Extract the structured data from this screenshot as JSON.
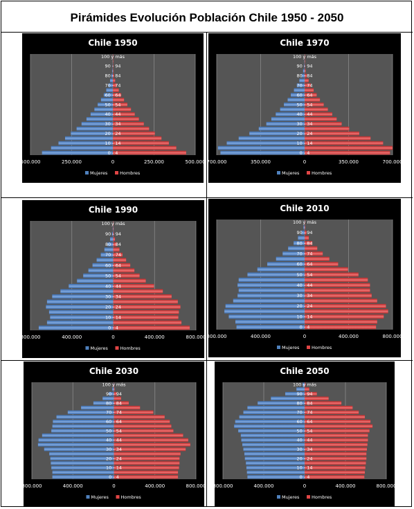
{
  "page": {
    "title": "Pirámides Evolución Población Chile 1950 - 2050"
  },
  "colors": {
    "mujeres": "#4f81bd",
    "hombres": "#e04545",
    "plot_bg": "#555555",
    "panel_bg": "#000000"
  },
  "chart_data": [
    {
      "type": "bar",
      "orientation": "horizontal",
      "title": "Chile 1950",
      "categories": [
        "0 - 4",
        "5 - 9",
        "10 - 14",
        "15 - 19",
        "20 - 24",
        "25 - 29",
        "30 - 34",
        "35 - 39",
        "40 - 44",
        "45 - 49",
        "50 - 54",
        "55 - 59",
        "60 - 64",
        "65 - 69",
        "70 - 74",
        "75 - 79",
        "80 - 84",
        "85 - 89",
        "90 - 94",
        "95 - 99",
        "100 y más"
      ],
      "category_labels": [
        "0 - 4",
        "",
        "10 - 14",
        "",
        "20 - 24",
        "",
        "30 - 34",
        "",
        "40 - 44",
        "",
        "50 - 54",
        "",
        "60 - 64",
        "",
        "70 - 74",
        "",
        "80 - 84",
        "",
        "90 - 94",
        "",
        "100 y más"
      ],
      "series": [
        {
          "name": "Mujeres",
          "values": [
            -430000,
            -375000,
            -330000,
            -290000,
            -255000,
            -220000,
            -190000,
            -160000,
            -135000,
            -112000,
            -92000,
            -72000,
            -55000,
            -40000,
            -27000,
            -17000,
            -9000,
            -4000,
            -1500,
            -400,
            -100
          ]
        },
        {
          "name": "Hombres",
          "values": [
            445000,
            385000,
            340000,
            295000,
            255000,
            220000,
            188000,
            158000,
            133000,
            110000,
            88000,
            68000,
            51000,
            36000,
            23000,
            14000,
            7000,
            3000,
            1000,
            300,
            50
          ]
        }
      ],
      "xlim": [
        -500000,
        500000
      ],
      "xticks": [
        -500000,
        -250000,
        0,
        250000,
        500000
      ],
      "xtick_labels": [
        "500.000",
        "250.000",
        "0",
        "250.000",
        "500.000"
      ],
      "legend": [
        "Mujeres",
        "Hombres"
      ]
    },
    {
      "type": "bar",
      "orientation": "horizontal",
      "title": "Chile 1970",
      "categories": [
        "0 - 4",
        "5 - 9",
        "10 - 14",
        "15 - 19",
        "20 - 24",
        "25 - 29",
        "30 - 34",
        "35 - 39",
        "40 - 44",
        "45 - 49",
        "50 - 54",
        "55 - 59",
        "60 - 64",
        "65 - 69",
        "70 - 74",
        "75 - 79",
        "80 - 84",
        "85 - 89",
        "90 - 94",
        "95 - 99",
        "100 y más"
      ],
      "category_labels": [
        "0 - 4",
        "",
        "10 - 14",
        "",
        "20 - 24",
        "",
        "30 - 34",
        "",
        "40 - 44",
        "",
        "50 - 54",
        "",
        "60 - 64",
        "",
        "70 - 74",
        "",
        "80 - 84",
        "",
        "90 - 94",
        "",
        "100 y más"
      ],
      "series": [
        {
          "name": "Mujeres",
          "values": [
            -670000,
            -690000,
            -620000,
            -525000,
            -440000,
            -365000,
            -305000,
            -265000,
            -230000,
            -195000,
            -165000,
            -135000,
            -110000,
            -85000,
            -62000,
            -42000,
            -25000,
            -12000,
            -5000,
            -1500,
            -300
          ]
        },
        {
          "name": "Hombres",
          "values": [
            680000,
            700000,
            625000,
            525000,
            435000,
            355000,
            295000,
            255000,
            220000,
            185000,
            152000,
            122000,
            96000,
            72000,
            50000,
            32000,
            18000,
            8000,
            3000,
            800,
            150
          ]
        }
      ],
      "xlim": [
        -700000,
        700000
      ],
      "xticks": [
        -700000,
        -350000,
        0,
        350000,
        700000
      ],
      "xtick_labels": [
        "700.000",
        "350.000",
        "0",
        "350.000",
        "700.000"
      ],
      "legend": [
        "Mujeres",
        "Hombres"
      ]
    },
    {
      "type": "bar",
      "orientation": "horizontal",
      "title": "Chile 1990",
      "categories": [
        "0 - 4",
        "5 - 9",
        "10 - 14",
        "15 - 19",
        "20 - 24",
        "25 - 29",
        "30 - 34",
        "35 - 39",
        "40 - 44",
        "45 - 49",
        "50 - 54",
        "55 - 59",
        "60 - 64",
        "65 - 69",
        "70 - 74",
        "75 - 79",
        "80 - 84",
        "85 - 89",
        "90 - 94",
        "95 - 99",
        "100 y más"
      ],
      "category_labels": [
        "0 - 4",
        "",
        "10 - 14",
        "",
        "20 - 24",
        "",
        "30 - 34",
        "",
        "40 - 44",
        "",
        "50 - 54",
        "",
        "60 - 64",
        "",
        "70 - 74",
        "",
        "80 - 84",
        "",
        "90 - 94",
        "",
        "100 y más"
      ],
      "series": [
        {
          "name": "Mujeres",
          "values": [
            -720000,
            -640000,
            -610000,
            -620000,
            -650000,
            -640000,
            -590000,
            -510000,
            -430000,
            -350000,
            -290000,
            -240000,
            -200000,
            -160000,
            -120000,
            -85000,
            -55000,
            -30000,
            -12000,
            -4000,
            -700
          ]
        },
        {
          "name": "Hombres",
          "values": [
            740000,
            660000,
            630000,
            635000,
            650000,
            625000,
            565000,
            480000,
            395000,
            315000,
            255000,
            205000,
            165000,
            125000,
            90000,
            60000,
            35000,
            17000,
            7000,
            2000,
            400
          ]
        }
      ],
      "xlim": [
        -800000,
        800000
      ],
      "xticks": [
        -800000,
        -400000,
        0,
        400000,
        800000
      ],
      "xtick_labels": [
        "800.000",
        "400.000",
        "0",
        "400.000",
        "800.000"
      ],
      "legend": [
        "Mujeres",
        "Hombres"
      ]
    },
    {
      "type": "bar",
      "orientation": "horizontal",
      "title": "Chile 2010",
      "categories": [
        "0 - 4",
        "5 - 9",
        "10 - 14",
        "15 - 19",
        "20 - 24",
        "25 - 29",
        "30 - 34",
        "35 - 39",
        "40 - 44",
        "45 - 49",
        "50 - 54",
        "55 - 59",
        "60 - 64",
        "65 - 69",
        "70 - 74",
        "75 - 79",
        "80 - 84",
        "85 - 89",
        "90 - 94",
        "95 - 99",
        "100 y más"
      ],
      "category_labels": [
        "0 - 4",
        "",
        "10 - 14",
        "",
        "20 - 24",
        "",
        "30 - 34",
        "",
        "40 - 44",
        "",
        "50 - 54",
        "",
        "60 - 64",
        "",
        "70 - 74",
        "",
        "80 - 84",
        "",
        "90 - 94",
        "",
        "100 y más"
      ],
      "series": [
        {
          "name": "Mujeres",
          "values": [
            -620000,
            -630000,
            -690000,
            -730000,
            -720000,
            -650000,
            -610000,
            -600000,
            -610000,
            -600000,
            -520000,
            -430000,
            -340000,
            -260000,
            -200000,
            -150000,
            -100000,
            -60000,
            -30000,
            -10000,
            -2000
          ]
        },
        {
          "name": "Hombres",
          "values": [
            650000,
            660000,
            720000,
            760000,
            740000,
            660000,
            610000,
            595000,
            595000,
            575000,
            490000,
            395000,
            305000,
            225000,
            165000,
            115000,
            70000,
            38000,
            17000,
            5000,
            800
          ]
        }
      ],
      "xlim": [
        -800000,
        800000
      ],
      "xticks": [
        -800000,
        -400000,
        0,
        400000,
        800000
      ],
      "xtick_labels": [
        "800.000",
        "400.000",
        "0",
        "400.000",
        "800.000"
      ],
      "legend": [
        "Mujeres",
        "Hombres"
      ]
    },
    {
      "type": "bar",
      "orientation": "horizontal",
      "title": "Chile 2030",
      "categories": [
        "0 - 4",
        "5 - 9",
        "10 - 14",
        "15 - 19",
        "20 - 24",
        "25 - 29",
        "30 - 34",
        "35 - 39",
        "40 - 44",
        "45 - 49",
        "50 - 54",
        "55 - 59",
        "60 - 64",
        "65 - 69",
        "70 - 74",
        "75 - 79",
        "80 - 84",
        "85 - 89",
        "90 - 94",
        "95 - 99",
        "100 y más"
      ],
      "category_labels": [
        "0 - 4",
        "",
        "10 - 14",
        "",
        "20 - 24",
        "",
        "30 - 34",
        "",
        "40 - 44",
        "",
        "50 - 54",
        "",
        "60 - 64",
        "",
        "70 - 74",
        "",
        "80 - 84",
        "",
        "90 - 94",
        "",
        "100 y más"
      ],
      "series": [
        {
          "name": "Mujeres",
          "values": [
            -600000,
            -600000,
            -610000,
            -615000,
            -620000,
            -630000,
            -680000,
            -740000,
            -735000,
            -700000,
            -610000,
            -600000,
            -595000,
            -560000,
            -450000,
            -320000,
            -200000,
            -110000,
            -50000,
            -15000,
            -3000
          ]
        },
        {
          "name": "Hombres",
          "values": [
            625000,
            625000,
            635000,
            640000,
            640000,
            650000,
            700000,
            745000,
            725000,
            675000,
            580000,
            560000,
            545000,
            495000,
            385000,
            255000,
            145000,
            70000,
            28000,
            7000,
            1200
          ]
        }
      ],
      "xlim": [
        -800000,
        800000
      ],
      "xticks": [
        -800000,
        -400000,
        0,
        400000,
        800000
      ],
      "xtick_labels": [
        "800.000",
        "400.000",
        "0",
        "400.000",
        "800.000"
      ],
      "legend": [
        "Mujeres",
        "Hombres"
      ]
    },
    {
      "type": "bar",
      "orientation": "horizontal",
      "title": "Chile 2050",
      "categories": [
        "0 - 4",
        "5 - 9",
        "10 - 14",
        "15 - 19",
        "20 - 24",
        "25 - 29",
        "30 - 34",
        "35 - 39",
        "40 - 44",
        "45 - 49",
        "50 - 54",
        "55 - 59",
        "60 - 64",
        "65 - 69",
        "70 - 74",
        "75 - 79",
        "80 - 84",
        "85 - 89",
        "90 - 94",
        "95 - 99",
        "100 y más"
      ],
      "category_labels": [
        "0 - 4",
        "",
        "10 - 14",
        "",
        "20 - 24",
        "",
        "30 - 34",
        "",
        "40 - 44",
        "",
        "50 - 54",
        "",
        "60 - 64",
        "",
        "70 - 74",
        "",
        "80 - 84",
        "",
        "90 - 94",
        "",
        "100 y más"
      ],
      "series": [
        {
          "name": "Mujeres",
          "values": [
            -560000,
            -565000,
            -570000,
            -575000,
            -585000,
            -590000,
            -600000,
            -610000,
            -620000,
            -625000,
            -650000,
            -690000,
            -680000,
            -640000,
            -600000,
            -560000,
            -460000,
            -330000,
            -190000,
            -80000,
            -20000
          ]
        },
        {
          "name": "Hombres",
          "values": [
            585000,
            590000,
            595000,
            600000,
            605000,
            605000,
            610000,
            615000,
            620000,
            620000,
            635000,
            665000,
            645000,
            590000,
            530000,
            470000,
            360000,
            235000,
            120000,
            45000,
            9000
          ]
        }
      ],
      "xlim": [
        -800000,
        800000
      ],
      "xticks": [
        -800000,
        -400000,
        0,
        400000,
        800000
      ],
      "xtick_labels": [
        "800.000",
        "400.000",
        "0",
        "400.000",
        "800.000"
      ],
      "legend": [
        "Mujeres",
        "Hombres"
      ]
    }
  ]
}
